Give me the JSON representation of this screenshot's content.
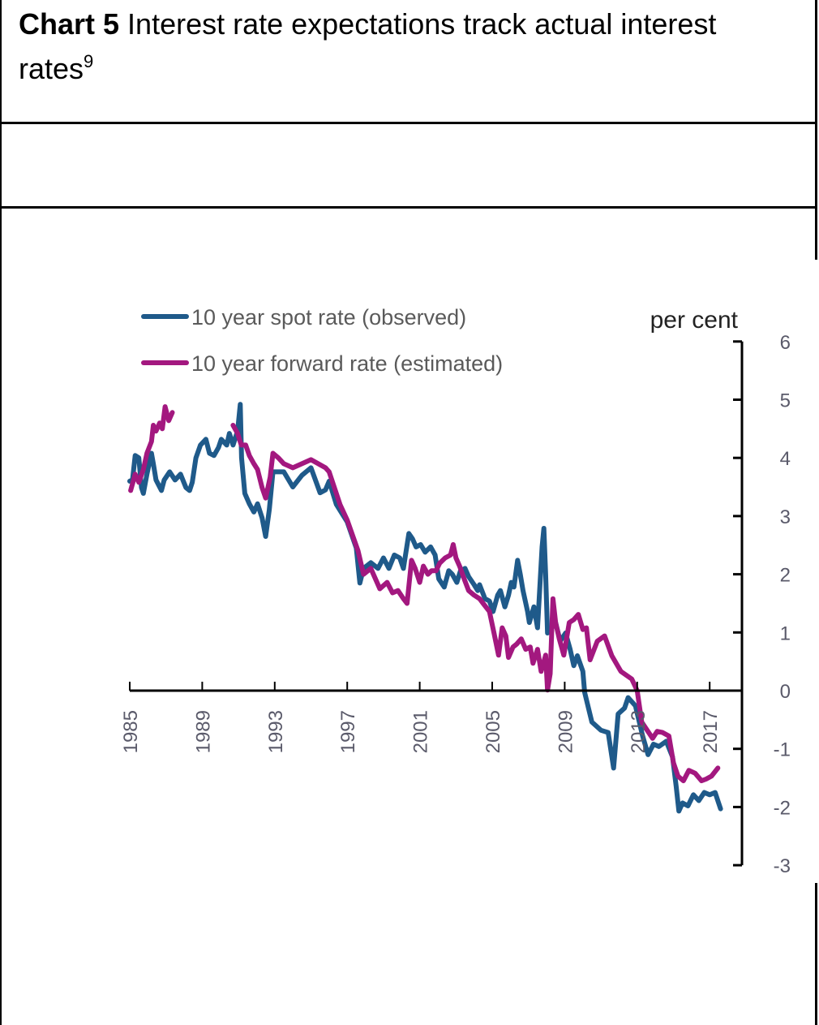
{
  "header": {
    "chart_number": "Chart 5",
    "title": "Interest rate expectations track actual interest rates",
    "footnote_marker": "9"
  },
  "chart_data": {
    "type": "line",
    "title": "Chart 5 Interest rate expectations track actual interest rates",
    "xlabel": "",
    "ylabel": "per cent",
    "xlim": [
      1985,
      2018.8
    ],
    "ylim": [
      -3,
      6
    ],
    "x_ticks": [
      1985,
      1989,
      1993,
      1997,
      2001,
      2005,
      2009,
      2013,
      2017
    ],
    "x_tick_labels": [
      "1985",
      "1989",
      "1993",
      "1997",
      "2001",
      "2005",
      "2009",
      "2013",
      "2017"
    ],
    "y_ticks": [
      6,
      5,
      4,
      3,
      2,
      1,
      0,
      -1,
      -2,
      -3
    ],
    "y_tick_labels": [
      "6",
      "5",
      "4",
      "3",
      "2",
      "1",
      "0",
      "-1",
      "-2",
      "-3"
    ],
    "y_axis_position": "right",
    "grid": false,
    "legend_position": "top-left",
    "series": [
      {
        "name": "10 year spot rate (observed)",
        "color": "#1f5a8a",
        "segments": [
          [
            [
              1985.0,
              3.6
            ],
            [
              1985.15,
              3.62
            ],
            [
              1985.3,
              4.04
            ],
            [
              1985.5,
              4.0
            ],
            [
              1985.65,
              3.49
            ],
            [
              1985.75,
              3.39
            ],
            [
              1985.95,
              3.72
            ],
            [
              1986.2,
              4.08
            ],
            [
              1986.3,
              3.9
            ],
            [
              1986.45,
              3.62
            ],
            [
              1986.75,
              3.44
            ],
            [
              1986.9,
              3.62
            ],
            [
              1987.2,
              3.76
            ],
            [
              1987.5,
              3.62
            ],
            [
              1987.8,
              3.72
            ],
            [
              1988.1,
              3.49
            ],
            [
              1988.3,
              3.44
            ],
            [
              1988.45,
              3.58
            ],
            [
              1988.65,
              4.0
            ],
            [
              1988.9,
              4.22
            ],
            [
              1989.2,
              4.32
            ],
            [
              1989.4,
              4.08
            ],
            [
              1989.65,
              4.04
            ],
            [
              1989.9,
              4.18
            ],
            [
              1990.05,
              4.32
            ],
            [
              1990.35,
              4.22
            ],
            [
              1990.5,
              4.42
            ],
            [
              1990.7,
              4.22
            ],
            [
              1990.95,
              4.46
            ],
            [
              1991.1,
              4.92
            ],
            [
              1991.17,
              4.0
            ],
            [
              1991.35,
              3.39
            ],
            [
              1991.6,
              3.21
            ],
            [
              1991.85,
              3.07
            ],
            [
              1992.05,
              3.21
            ],
            [
              1992.3,
              2.97
            ],
            [
              1992.5,
              2.65
            ],
            [
              1992.7,
              3.11
            ],
            [
              1992.9,
              3.76
            ],
            [
              1993.15,
              3.76
            ],
            [
              1993.5,
              3.76
            ],
            [
              1994.0,
              3.5
            ],
            [
              1994.5,
              3.7
            ],
            [
              1995.0,
              3.83
            ],
            [
              1995.5,
              3.4
            ],
            [
              1995.8,
              3.45
            ],
            [
              1996.0,
              3.6
            ],
            [
              1996.4,
              3.2
            ],
            [
              1997.0,
              2.9
            ],
            [
              1997.5,
              2.45
            ],
            [
              1997.7,
              1.85
            ],
            [
              1997.9,
              2.1
            ],
            [
              1998.3,
              2.2
            ],
            [
              1998.7,
              2.1
            ],
            [
              1999.0,
              2.28
            ],
            [
              1999.3,
              2.1
            ],
            [
              1999.6,
              2.33
            ],
            [
              1999.9,
              2.28
            ],
            [
              2000.1,
              2.1
            ],
            [
              2000.4,
              2.7
            ],
            [
              2000.6,
              2.61
            ],
            [
              2000.8,
              2.47
            ],
            [
              2001.05,
              2.51
            ],
            [
              2001.3,
              2.38
            ],
            [
              2001.6,
              2.47
            ],
            [
              2001.85,
              2.33
            ],
            [
              2002.05,
              1.92
            ],
            [
              2002.35,
              1.78
            ],
            [
              2002.6,
              2.06
            ],
            [
              2002.8,
              2.0
            ],
            [
              2003.05,
              1.86
            ],
            [
              2003.25,
              2.06
            ],
            [
              2003.5,
              2.1
            ],
            [
              2003.7,
              1.96
            ],
            [
              2004.0,
              1.82
            ],
            [
              2004.2,
              1.72
            ],
            [
              2004.3,
              1.82
            ],
            [
              2004.6,
              1.58
            ],
            [
              2004.85,
              1.54
            ],
            [
              2005.05,
              1.36
            ],
            [
              2005.3,
              1.64
            ],
            [
              2005.45,
              1.72
            ],
            [
              2005.7,
              1.44
            ],
            [
              2005.9,
              1.64
            ],
            [
              2006.05,
              1.86
            ],
            [
              2006.2,
              1.78
            ],
            [
              2006.4,
              2.24
            ],
            [
              2006.55,
              2.0
            ],
            [
              2006.7,
              1.72
            ],
            [
              2006.95,
              1.36
            ],
            [
              2007.05,
              1.17
            ],
            [
              2007.3,
              1.44
            ],
            [
              2007.5,
              1.08
            ],
            [
              2007.75,
              2.47
            ],
            [
              2007.85,
              2.79
            ],
            [
              2007.95,
              2.0
            ],
            [
              2008.05,
              0.99
            ],
            [
              2008.3,
              1.08
            ],
            [
              2008.5,
              1.17
            ],
            [
              2008.75,
              0.85
            ],
            [
              2009.05,
              0.99
            ],
            [
              2009.3,
              0.71
            ],
            [
              2009.5,
              0.43
            ],
            [
              2009.7,
              0.6
            ],
            [
              2010.0,
              0.33
            ],
            [
              2010.1,
              -0.03
            ],
            [
              2010.5,
              -0.54
            ],
            [
              2011.0,
              -0.68
            ],
            [
              2011.4,
              -0.72
            ],
            [
              2011.7,
              -1.33
            ],
            [
              2011.95,
              -0.4
            ],
            [
              2012.3,
              -0.3
            ],
            [
              2012.5,
              -0.12
            ],
            [
              2012.9,
              -0.26
            ],
            [
              2013.3,
              -0.78
            ],
            [
              2013.6,
              -1.1
            ],
            [
              2013.9,
              -0.92
            ],
            [
              2014.2,
              -0.96
            ],
            [
              2014.6,
              -0.87
            ],
            [
              2014.95,
              -1.14
            ],
            [
              2015.15,
              -1.65
            ],
            [
              2015.3,
              -2.07
            ],
            [
              2015.5,
              -1.93
            ],
            [
              2015.8,
              -1.98
            ],
            [
              2016.1,
              -1.79
            ],
            [
              2016.4,
              -1.89
            ],
            [
              2016.7,
              -1.75
            ],
            [
              2017.0,
              -1.79
            ],
            [
              2017.3,
              -1.75
            ],
            [
              2017.6,
              -2.03
            ]
          ]
        ]
      },
      {
        "name": "10 year forward rate (estimated)",
        "color": "#a3187f",
        "segments": [
          [
            [
              1985.05,
              3.44
            ],
            [
              1985.3,
              3.72
            ],
            [
              1985.5,
              3.58
            ],
            [
              1985.75,
              3.8
            ],
            [
              1985.95,
              4.08
            ],
            [
              1986.2,
              4.28
            ],
            [
              1986.3,
              4.56
            ],
            [
              1986.45,
              4.46
            ],
            [
              1986.65,
              4.6
            ],
            [
              1986.8,
              4.5
            ],
            [
              1986.95,
              4.88
            ],
            [
              1987.15,
              4.64
            ],
            [
              1987.35,
              4.78
            ]
          ],
          [
            [
              1990.7,
              4.56
            ],
            [
              1990.95,
              4.42
            ],
            [
              1991.15,
              4.22
            ],
            [
              1991.4,
              4.22
            ],
            [
              1991.6,
              4.04
            ],
            [
              1991.85,
              3.9
            ],
            [
              1992.05,
              3.8
            ],
            [
              1992.3,
              3.49
            ],
            [
              1992.5,
              3.31
            ],
            [
              1992.75,
              3.67
            ],
            [
              1992.9,
              4.08
            ],
            [
              1993.2,
              4.0
            ],
            [
              1993.5,
              3.9
            ],
            [
              1994.0,
              3.83
            ],
            [
              1994.5,
              3.9
            ],
            [
              1995.0,
              3.97
            ],
            [
              1995.8,
              3.83
            ],
            [
              1996.0,
              3.76
            ],
            [
              1996.6,
              3.2
            ],
            [
              1997.0,
              2.93
            ],
            [
              1997.6,
              2.4
            ],
            [
              1997.9,
              2.0
            ],
            [
              1998.3,
              2.1
            ],
            [
              1998.8,
              1.75
            ],
            [
              1999.2,
              1.86
            ],
            [
              1999.5,
              1.68
            ],
            [
              1999.8,
              1.72
            ],
            [
              2000.1,
              1.58
            ],
            [
              2000.3,
              1.5
            ],
            [
              2000.55,
              2.24
            ],
            [
              2000.75,
              2.1
            ],
            [
              2001.0,
              1.86
            ],
            [
              2001.2,
              2.14
            ],
            [
              2001.45,
              2.0
            ],
            [
              2001.65,
              2.06
            ],
            [
              2001.9,
              2.06
            ],
            [
              2002.1,
              2.19
            ],
            [
              2002.4,
              2.28
            ],
            [
              2002.7,
              2.33
            ],
            [
              2002.85,
              2.51
            ],
            [
              2003.0,
              2.28
            ],
            [
              2003.2,
              2.14
            ],
            [
              2003.45,
              1.92
            ],
            [
              2003.7,
              1.72
            ],
            [
              2004.0,
              1.64
            ],
            [
              2004.3,
              1.58
            ],
            [
              2004.5,
              1.5
            ],
            [
              2004.85,
              1.36
            ],
            [
              2005.1,
              0.99
            ],
            [
              2005.35,
              0.61
            ],
            [
              2005.55,
              1.08
            ],
            [
              2005.75,
              0.94
            ],
            [
              2005.9,
              0.57
            ],
            [
              2006.15,
              0.75
            ],
            [
              2006.35,
              0.8
            ],
            [
              2006.6,
              0.89
            ],
            [
              2006.85,
              0.71
            ],
            [
              2007.1,
              0.75
            ],
            [
              2007.25,
              0.47
            ],
            [
              2007.5,
              0.71
            ],
            [
              2007.7,
              0.33
            ],
            [
              2007.95,
              0.61
            ],
            [
              2008.05,
              0.01
            ],
            [
              2008.2,
              0.29
            ],
            [
              2008.35,
              1.58
            ],
            [
              2008.5,
              1.17
            ],
            [
              2008.7,
              0.89
            ],
            [
              2008.95,
              0.61
            ],
            [
              2009.25,
              1.17
            ],
            [
              2009.5,
              1.22
            ],
            [
              2009.75,
              1.31
            ],
            [
              2010.0,
              1.05
            ],
            [
              2010.2,
              1.08
            ],
            [
              2010.4,
              0.53
            ],
            [
              2010.8,
              0.85
            ],
            [
              2011.2,
              0.94
            ],
            [
              2011.6,
              0.6
            ],
            [
              2012.1,
              0.33
            ],
            [
              2012.7,
              0.2
            ],
            [
              2013.0,
              0.0
            ],
            [
              2013.25,
              -0.54
            ],
            [
              2013.55,
              -0.68
            ],
            [
              2013.85,
              -0.82
            ],
            [
              2014.1,
              -0.7
            ],
            [
              2014.4,
              -0.72
            ],
            [
              2014.75,
              -0.78
            ],
            [
              2015.0,
              -1.24
            ],
            [
              2015.25,
              -1.47
            ],
            [
              2015.55,
              -1.55
            ],
            [
              2015.85,
              -1.37
            ],
            [
              2016.2,
              -1.42
            ],
            [
              2016.55,
              -1.55
            ],
            [
              2016.8,
              -1.52
            ],
            [
              2017.1,
              -1.47
            ],
            [
              2017.45,
              -1.33
            ]
          ]
        ]
      }
    ]
  }
}
